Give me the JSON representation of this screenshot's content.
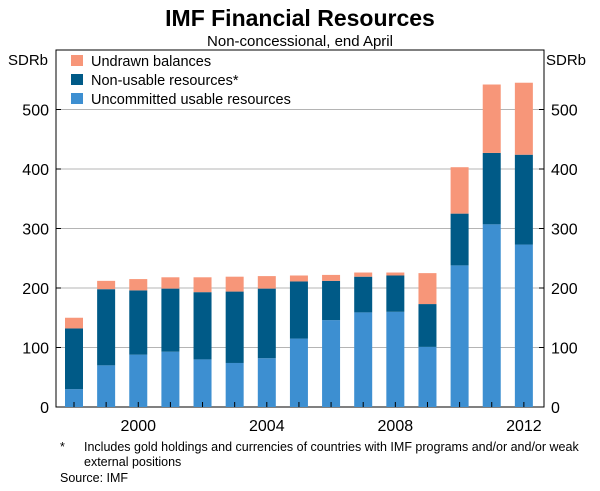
{
  "chart_data": {
    "type": "bar",
    "stacked": true,
    "title": "IMF Financial Resources",
    "subtitle": "Non-concessional, end April",
    "ylabel_left": "SDRb",
    "ylabel_right": "SDRb",
    "ylim": [
      0,
      600
    ],
    "yticks": [
      0,
      100,
      200,
      300,
      400,
      500
    ],
    "x": [
      1998,
      1999,
      2000,
      2001,
      2002,
      2003,
      2004,
      2005,
      2006,
      2007,
      2008,
      2009,
      2010,
      2011,
      2012
    ],
    "xtick_labels": [
      "2000",
      "2004",
      "2008",
      "2012"
    ],
    "xtick_values": [
      2000,
      2004,
      2008,
      2012
    ],
    "series": [
      {
        "name": "Uncommitted usable resources",
        "color": "#3d8fd1",
        "values": [
          30,
          70,
          88,
          93,
          80,
          74,
          82,
          115,
          146,
          159,
          160,
          101,
          238,
          307,
          273
        ]
      },
      {
        "name": "Non-usable resources*",
        "color": "#005a87",
        "values": [
          102,
          128,
          108,
          106,
          113,
          120,
          117,
          96,
          66,
          60,
          61,
          72,
          87,
          120,
          151
        ]
      },
      {
        "name": "Undrawn balances",
        "color": "#f79679",
        "values": [
          18,
          14,
          19,
          19,
          25,
          25,
          21,
          10,
          10,
          7,
          5,
          52,
          78,
          115,
          121
        ]
      }
    ],
    "legend_order": [
      "Undrawn balances",
      "Non-usable resources*",
      "Uncommitted usable resources"
    ],
    "legend_position": "top-left",
    "grid": true
  },
  "footnote": {
    "marker": "*",
    "text": "Includes gold holdings and currencies of countries with IMF programs and/or and/or weak external positions",
    "source": "Source: IMF"
  }
}
